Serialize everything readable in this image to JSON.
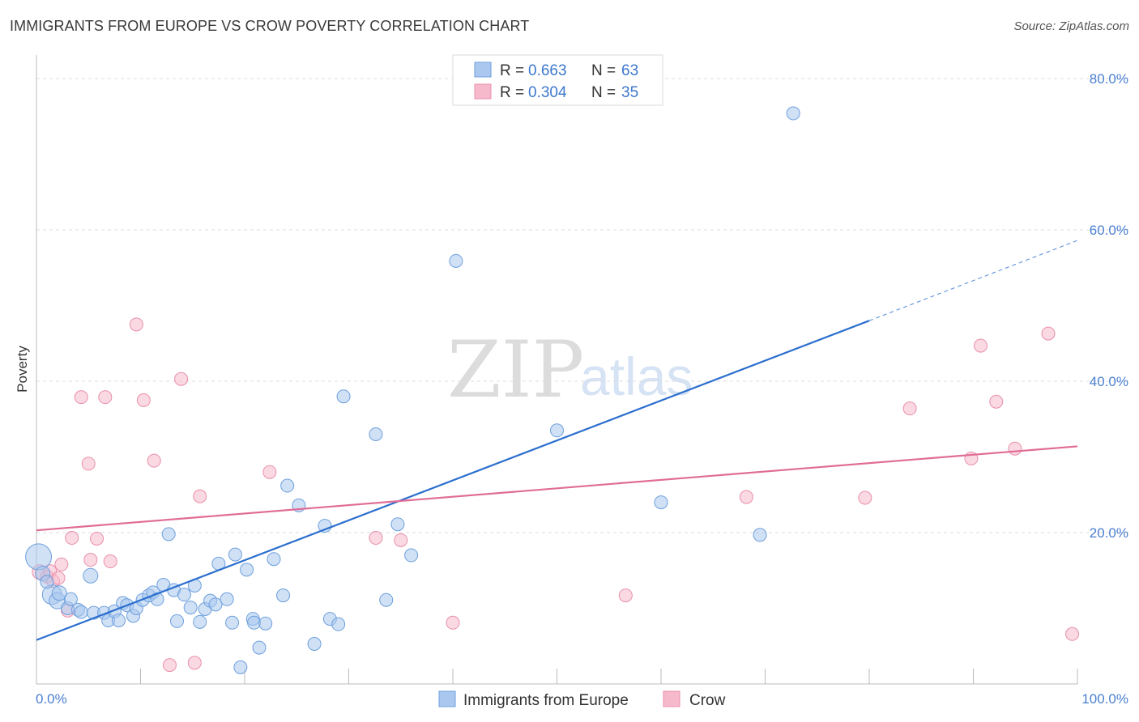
{
  "title": "IMMIGRANTS FROM EUROPE VS CROW POVERTY CORRELATION CHART",
  "source": "Source: ZipAtlas.com",
  "watermark": {
    "zip": "ZIP",
    "atlas": "atlas"
  },
  "colors": {
    "blue_fill": "#aac8ef",
    "blue_stroke": "#6d9fdc",
    "blue_line": "#2c6fce",
    "pink_fill": "#f6b9cb",
    "pink_stroke": "#e88fab",
    "pink_line": "#e06c96",
    "tick_label": "#4a7fd0",
    "grid": "#dddddd"
  },
  "legend": {
    "r_label": "R =",
    "n_label": "N =",
    "blue": {
      "r": "0.663",
      "n": "63"
    },
    "pink": {
      "r": "0.304",
      "n": "35"
    }
  },
  "chart_data": {
    "type": "scatter",
    "title": "IMMIGRANTS FROM EUROPE VS CROW POVERTY CORRELATION CHART",
    "xlabel": "",
    "ylabel": "Poverty",
    "xlim": [
      0,
      100
    ],
    "ylim": [
      0,
      80
    ],
    "x_tick_labels": {
      "min": "0.0%",
      "max": "100.0%"
    },
    "y_ticks": [
      {
        "value": 20,
        "label": "20.0%"
      },
      {
        "value": 40,
        "label": "40.0%"
      },
      {
        "value": 60,
        "label": "60.0%"
      },
      {
        "value": 80,
        "label": "80.0%"
      }
    ],
    "grid": true,
    "legend_position": "top-center",
    "series": [
      {
        "name": "Immigrants from Europe",
        "color": "blue",
        "r": 0.663,
        "n": 63,
        "trend": {
          "x0": 0,
          "y0": 5.8,
          "x1": 80,
          "y1": 48.0,
          "dash_to_x": 100,
          "dash_to_y": 58.6
        },
        "points": [
          [
            0.2,
            16.8,
            16
          ],
          [
            1.5,
            11.8,
            12
          ],
          [
            2.0,
            11.0,
            10
          ],
          [
            2.2,
            12.0,
            9
          ],
          [
            3.0,
            10.0,
            8
          ],
          [
            3.3,
            11.2,
            8
          ],
          [
            4.0,
            9.8,
            8
          ],
          [
            4.3,
            9.5,
            8
          ],
          [
            5.2,
            14.3,
            9
          ],
          [
            5.5,
            9.4,
            8
          ],
          [
            6.5,
            9.4,
            8
          ],
          [
            6.9,
            8.4,
            8
          ],
          [
            7.5,
            9.6,
            8
          ],
          [
            7.9,
            8.4,
            8
          ],
          [
            8.3,
            10.7,
            8
          ],
          [
            8.7,
            10.4,
            8
          ],
          [
            9.3,
            9.0,
            8
          ],
          [
            9.6,
            10.0,
            8
          ],
          [
            10.2,
            11.1,
            8
          ],
          [
            10.8,
            11.7,
            8
          ],
          [
            11.2,
            12.1,
            8
          ],
          [
            11.6,
            11.2,
            8
          ],
          [
            12.2,
            13.1,
            8
          ],
          [
            12.7,
            19.8,
            8
          ],
          [
            13.2,
            12.4,
            8
          ],
          [
            13.5,
            8.3,
            8
          ],
          [
            14.2,
            11.8,
            8
          ],
          [
            14.8,
            10.1,
            8
          ],
          [
            15.2,
            13.0,
            8
          ],
          [
            15.7,
            8.2,
            8
          ],
          [
            16.2,
            9.9,
            8
          ],
          [
            16.7,
            11.0,
            8
          ],
          [
            17.2,
            10.5,
            8
          ],
          [
            17.5,
            15.9,
            8
          ],
          [
            18.3,
            11.2,
            8
          ],
          [
            18.8,
            8.1,
            8
          ],
          [
            19.1,
            17.1,
            8
          ],
          [
            19.6,
            2.2,
            8
          ],
          [
            20.2,
            15.1,
            8
          ],
          [
            20.8,
            8.6,
            8
          ],
          [
            20.9,
            8.1,
            8
          ],
          [
            21.4,
            4.8,
            8
          ],
          [
            22.0,
            8.0,
            8
          ],
          [
            22.8,
            16.5,
            8
          ],
          [
            23.7,
            11.7,
            8
          ],
          [
            24.1,
            26.2,
            8
          ],
          [
            25.2,
            23.6,
            8
          ],
          [
            26.7,
            5.3,
            8
          ],
          [
            27.7,
            20.9,
            8
          ],
          [
            28.2,
            8.6,
            8
          ],
          [
            29.0,
            7.9,
            8
          ],
          [
            29.5,
            38.0,
            8
          ],
          [
            32.6,
            33.0,
            8
          ],
          [
            33.6,
            11.1,
            8
          ],
          [
            34.7,
            21.1,
            8
          ],
          [
            36.0,
            17.0,
            8
          ],
          [
            40.3,
            55.9,
            8
          ],
          [
            50.0,
            33.5,
            8
          ],
          [
            60.0,
            24.0,
            8
          ],
          [
            69.5,
            19.7,
            8
          ],
          [
            72.7,
            75.4,
            8
          ],
          [
            0.6,
            14.6,
            9
          ],
          [
            1.0,
            13.5,
            8
          ]
        ]
      },
      {
        "name": "Crow",
        "color": "pink",
        "r": 0.304,
        "n": 35,
        "trend": {
          "x0": 0,
          "y0": 20.3,
          "x1": 100,
          "y1": 31.4
        },
        "points": [
          [
            0.3,
            14.8,
            9
          ],
          [
            1.0,
            14.2,
            8
          ],
          [
            1.6,
            13.6,
            8
          ],
          [
            2.4,
            15.8,
            8
          ],
          [
            3.0,
            9.7,
            8
          ],
          [
            3.4,
            19.3,
            8
          ],
          [
            4.3,
            37.9,
            8
          ],
          [
            5.0,
            29.1,
            8
          ],
          [
            5.2,
            16.4,
            8
          ],
          [
            5.8,
            19.2,
            8
          ],
          [
            6.6,
            37.9,
            8
          ],
          [
            7.1,
            16.2,
            8
          ],
          [
            9.6,
            47.5,
            8
          ],
          [
            10.3,
            37.5,
            8
          ],
          [
            11.3,
            29.5,
            8
          ],
          [
            12.8,
            2.5,
            8
          ],
          [
            13.9,
            40.3,
            8
          ],
          [
            15.2,
            2.8,
            8
          ],
          [
            15.7,
            24.8,
            8
          ],
          [
            22.4,
            28.0,
            8
          ],
          [
            32.6,
            19.3,
            8
          ],
          [
            35.0,
            19.0,
            8
          ],
          [
            40.0,
            8.1,
            8
          ],
          [
            56.6,
            11.7,
            8
          ],
          [
            68.2,
            24.7,
            8
          ],
          [
            79.6,
            24.6,
            8
          ],
          [
            83.9,
            36.4,
            8
          ],
          [
            89.8,
            29.8,
            8
          ],
          [
            90.7,
            44.7,
            8
          ],
          [
            92.2,
            37.3,
            8
          ],
          [
            94.0,
            31.1,
            8
          ],
          [
            97.2,
            46.3,
            8
          ],
          [
            99.5,
            6.6,
            8
          ],
          [
            1.3,
            14.9,
            8
          ],
          [
            2.1,
            14.0,
            8
          ]
        ]
      }
    ]
  }
}
